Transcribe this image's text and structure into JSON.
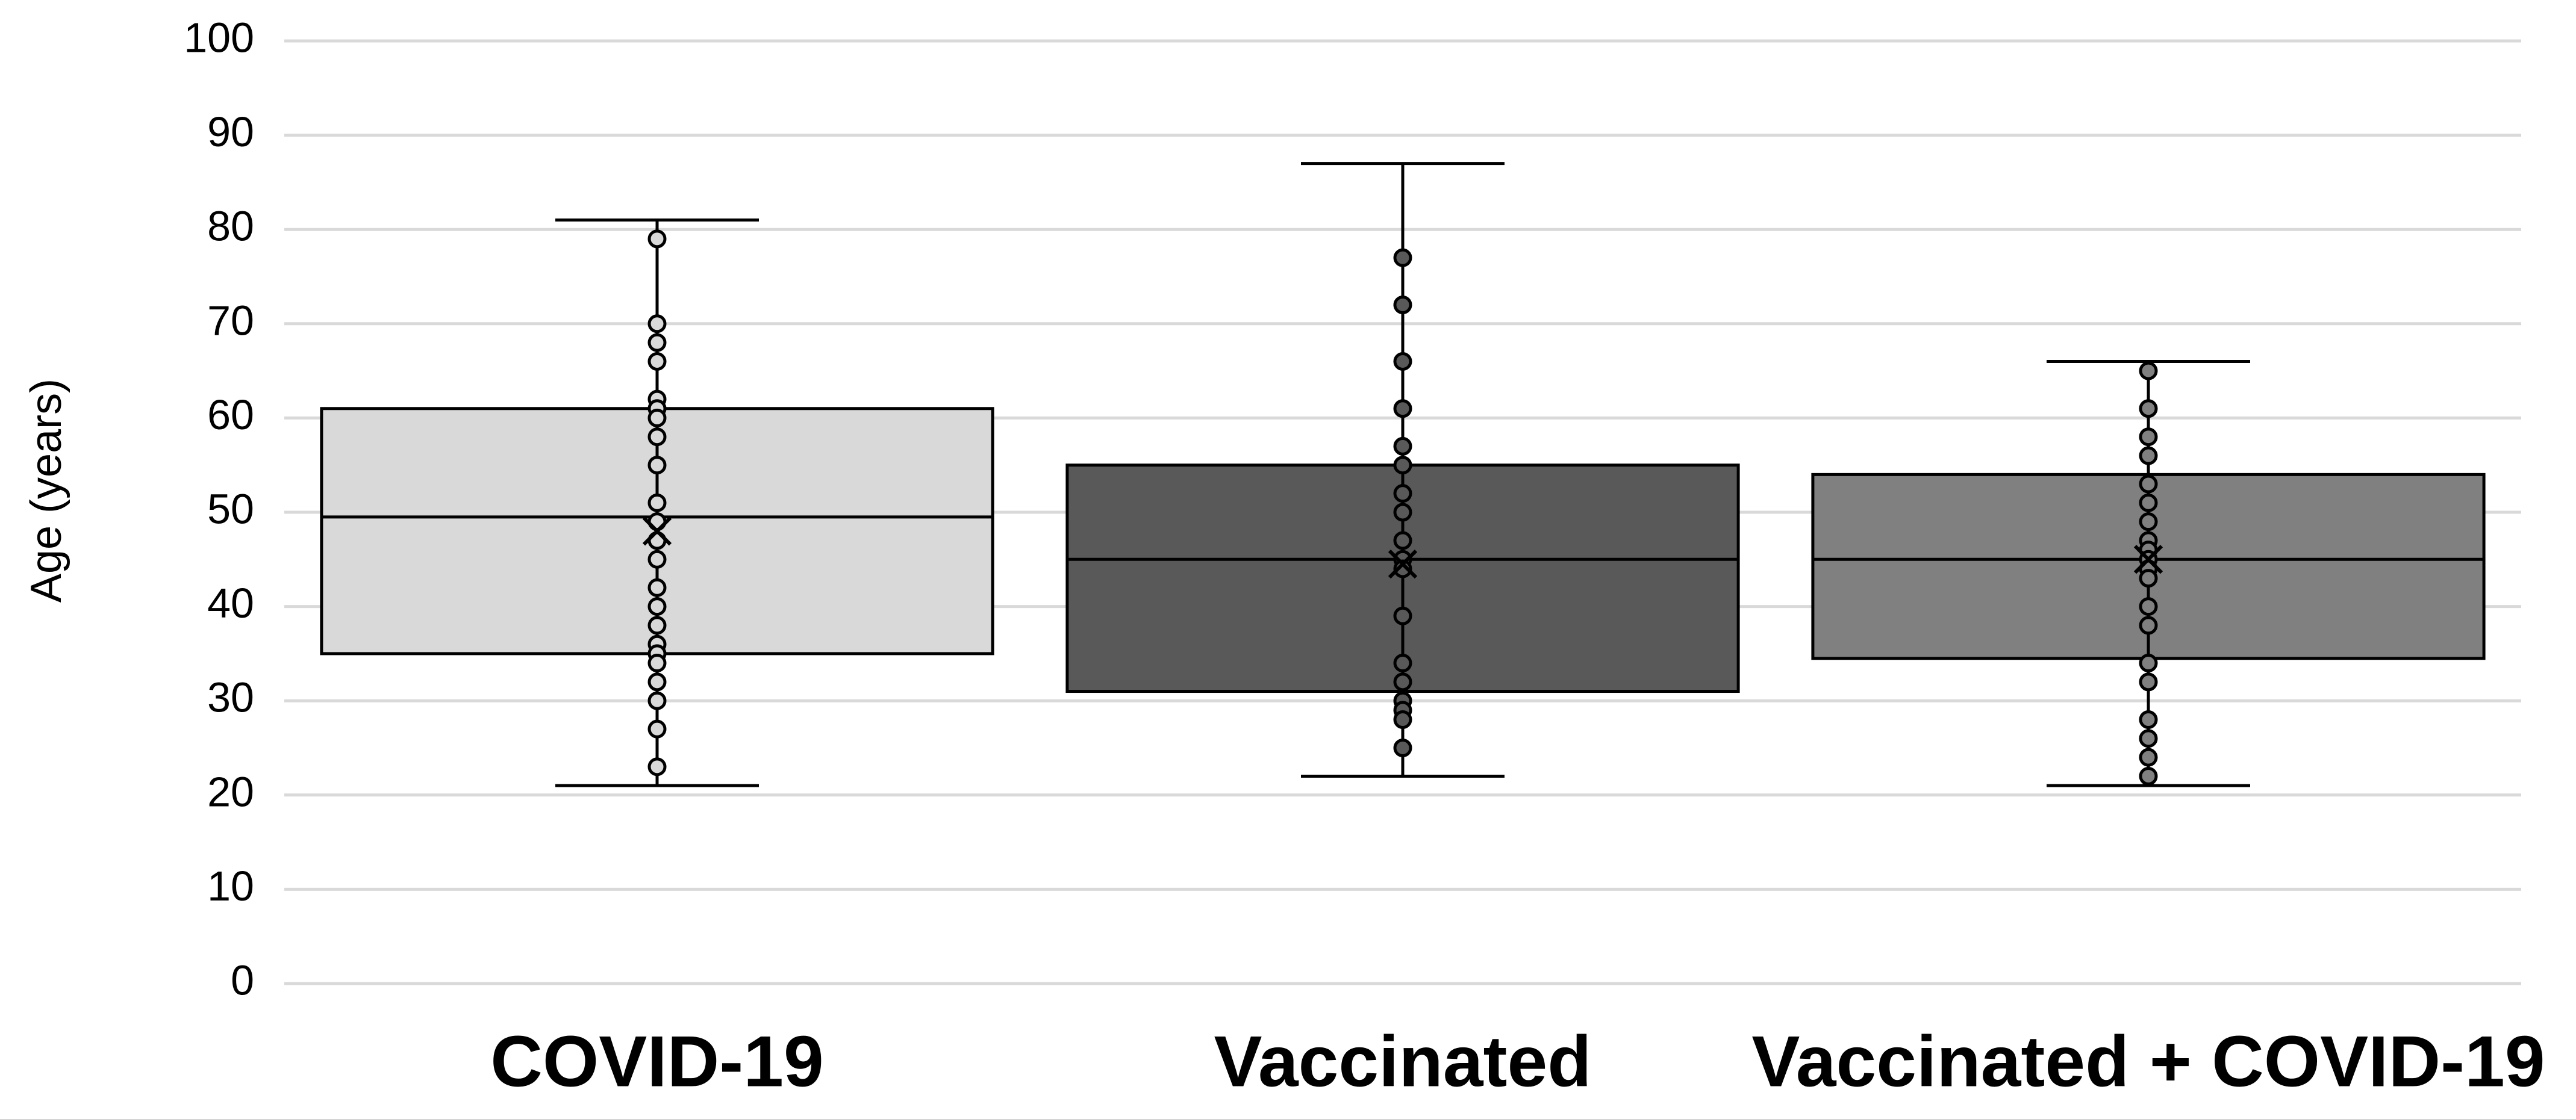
{
  "chart_data": {
    "type": "box",
    "y_label": "Age (years)",
    "categories": [
      "COVID-19",
      "Vaccinated",
      "Vaccinated + COVID-19"
    ],
    "ylim": [
      0,
      100
    ],
    "yticks": [
      0,
      10,
      20,
      30,
      40,
      50,
      60,
      70,
      80,
      90,
      100
    ],
    "grid": true,
    "boxes": [
      {
        "color": "#d9d9d9",
        "min": 21,
        "q1": 35,
        "median": 49.5,
        "q3": 61,
        "max": 81,
        "mean": 48,
        "points": [
          79,
          70,
          68,
          66,
          62,
          61,
          60,
          58,
          55,
          51,
          49,
          47,
          45,
          42,
          40,
          38,
          36,
          35,
          34,
          32,
          30,
          27,
          23
        ]
      },
      {
        "color": "#595959",
        "min": 22,
        "q1": 31,
        "median": 45,
        "q3": 55,
        "max": 87,
        "mean": 44.5,
        "points": [
          77,
          72,
          66,
          61,
          57,
          55,
          52,
          50,
          47,
          45,
          44,
          39,
          34,
          32,
          30,
          29,
          28,
          25
        ]
      },
      {
        "color": "#808080",
        "min": 21,
        "q1": 34.5,
        "median": 45,
        "q3": 54,
        "max": 66,
        "mean": 45,
        "points": [
          65,
          61,
          58,
          56,
          53,
          51,
          49,
          47,
          46,
          45,
          44,
          43,
          40,
          38,
          34,
          32,
          28,
          26,
          24,
          22
        ]
      }
    ]
  }
}
